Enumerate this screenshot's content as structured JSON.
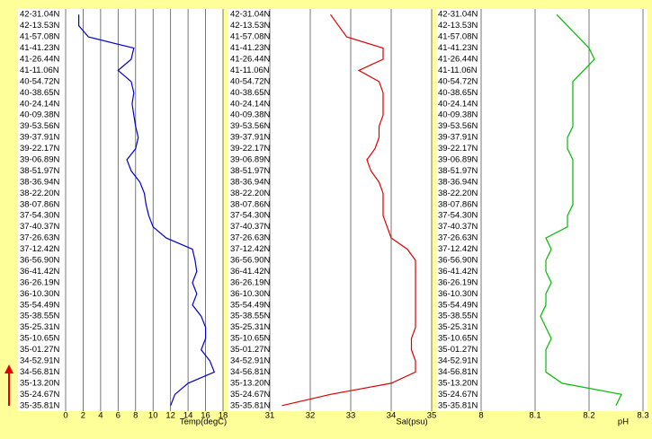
{
  "chart_data": [
    {
      "type": "line",
      "x_label": "Temp(degC)",
      "color": "#0000cc",
      "categories": [
        "42-31.04N",
        "42-13.53N",
        "41-57.08N",
        "41-41.23N",
        "41-26.44N",
        "41-11.06N",
        "40-54.72N",
        "40-38.65N",
        "40-24.14N",
        "40-09.38N",
        "39-53.56N",
        "39-37.91N",
        "39-22.17N",
        "39-06.89N",
        "38-51.97N",
        "38-36.94N",
        "38-22.20N",
        "38-07.86N",
        "37-54.30N",
        "37-40.37N",
        "37-26.63N",
        "37-12.42N",
        "36-56.90N",
        "36-41.42N",
        "36-26.19N",
        "36-10.30N",
        "35-54.49N",
        "35-38.55N",
        "35-25.31N",
        "35-10.65N",
        "35-01.27N",
        "34-52.91N",
        "34-56.81N",
        "35-13.20N",
        "35-24.67N",
        "35-35.81N"
      ],
      "values": [
        1.5,
        1.5,
        2.6,
        7.8,
        7.5,
        6,
        7.5,
        7.8,
        7.6,
        7.8,
        8,
        8.3,
        8,
        7,
        7.5,
        8.5,
        9,
        9.2,
        9.5,
        10,
        11.5,
        14.5,
        14.8,
        15,
        14.5,
        15,
        14.5,
        15.5,
        16,
        16,
        15.5,
        16.5,
        17,
        14,
        12.5,
        12
      ],
      "xlim": [
        0,
        18
      ],
      "xticks": [
        0,
        2,
        4,
        6,
        8,
        10,
        12,
        14,
        16,
        18
      ],
      "grid": true
    },
    {
      "type": "line",
      "x_label": "Sal(psu)",
      "color": "#dd0000",
      "categories": [
        "42-31.04N",
        "42-13.53N",
        "41-57.08N",
        "41-41.23N",
        "41-26.44N",
        "41-11.06N",
        "40-54.72N",
        "40-38.65N",
        "40-24.14N",
        "40-09.38N",
        "39-53.56N",
        "39-37.91N",
        "39-22.17N",
        "39-06.89N",
        "38-51.97N",
        "38-36.94N",
        "38-22.20N",
        "38-07.86N",
        "37-54.30N",
        "37-40.37N",
        "37-26.63N",
        "37-12.42N",
        "36-56.90N",
        "36-41.42N",
        "36-26.19N",
        "36-10.30N",
        "35-54.49N",
        "35-38.55N",
        "35-25.31N",
        "35-10.65N",
        "35-01.27N",
        "34-52.91N",
        "34-56.81N",
        "35-13.20N",
        "35-24.67N",
        "35-35.81N"
      ],
      "values": [
        32.5,
        32.7,
        32.9,
        33.8,
        33.8,
        33.2,
        33.7,
        33.8,
        33.8,
        33.8,
        33.7,
        33.7,
        33.6,
        33.4,
        33.5,
        33.7,
        33.8,
        33.8,
        33.8,
        33.9,
        34,
        34.4,
        34.6,
        34.6,
        34.6,
        34.6,
        34.6,
        34.6,
        34.6,
        34.5,
        34.5,
        34.6,
        34.6,
        34,
        32.5,
        31.3
      ],
      "xlim": [
        31,
        35
      ],
      "xticks": [
        31,
        32,
        33,
        34,
        35
      ],
      "grid": true
    },
    {
      "type": "line",
      "x_label": "pH",
      "color": "#00bb00",
      "categories": [
        "42-31.04N",
        "42-13.53N",
        "41-57.08N",
        "41-41.23N",
        "41-26.44N",
        "41-11.06N",
        "40-54.72N",
        "40-38.65N",
        "40-24.14N",
        "40-09.38N",
        "39-53.56N",
        "39-37.91N",
        "39-22.17N",
        "39-06.89N",
        "38-51.97N",
        "38-36.94N",
        "38-22.20N",
        "38-07.86N",
        "37-54.30N",
        "37-40.37N",
        "37-26.63N",
        "37-12.42N",
        "36-56.90N",
        "36-41.42N",
        "36-26.19N",
        "36-10.30N",
        "35-54.49N",
        "35-38.55N",
        "35-25.31N",
        "35-10.65N",
        "35-01.27N",
        "34-52.91N",
        "34-56.81N",
        "35-13.20N",
        "35-24.67N",
        "35-35.81N"
      ],
      "values": [
        8.14,
        8.16,
        8.18,
        8.2,
        8.21,
        8.19,
        8.17,
        8.17,
        8.17,
        8.17,
        8.17,
        8.16,
        8.16,
        8.17,
        8.17,
        8.17,
        8.17,
        8.17,
        8.16,
        8.16,
        8.12,
        8.13,
        8.12,
        8.12,
        8.13,
        8.12,
        8.12,
        8.11,
        8.12,
        8.13,
        8.12,
        8.12,
        8.12,
        8.15,
        8.26,
        8.25
      ],
      "xlim": [
        8,
        8.3
      ],
      "xticks": [
        8,
        8.1,
        8.2,
        8.3
      ],
      "grid": true
    }
  ]
}
